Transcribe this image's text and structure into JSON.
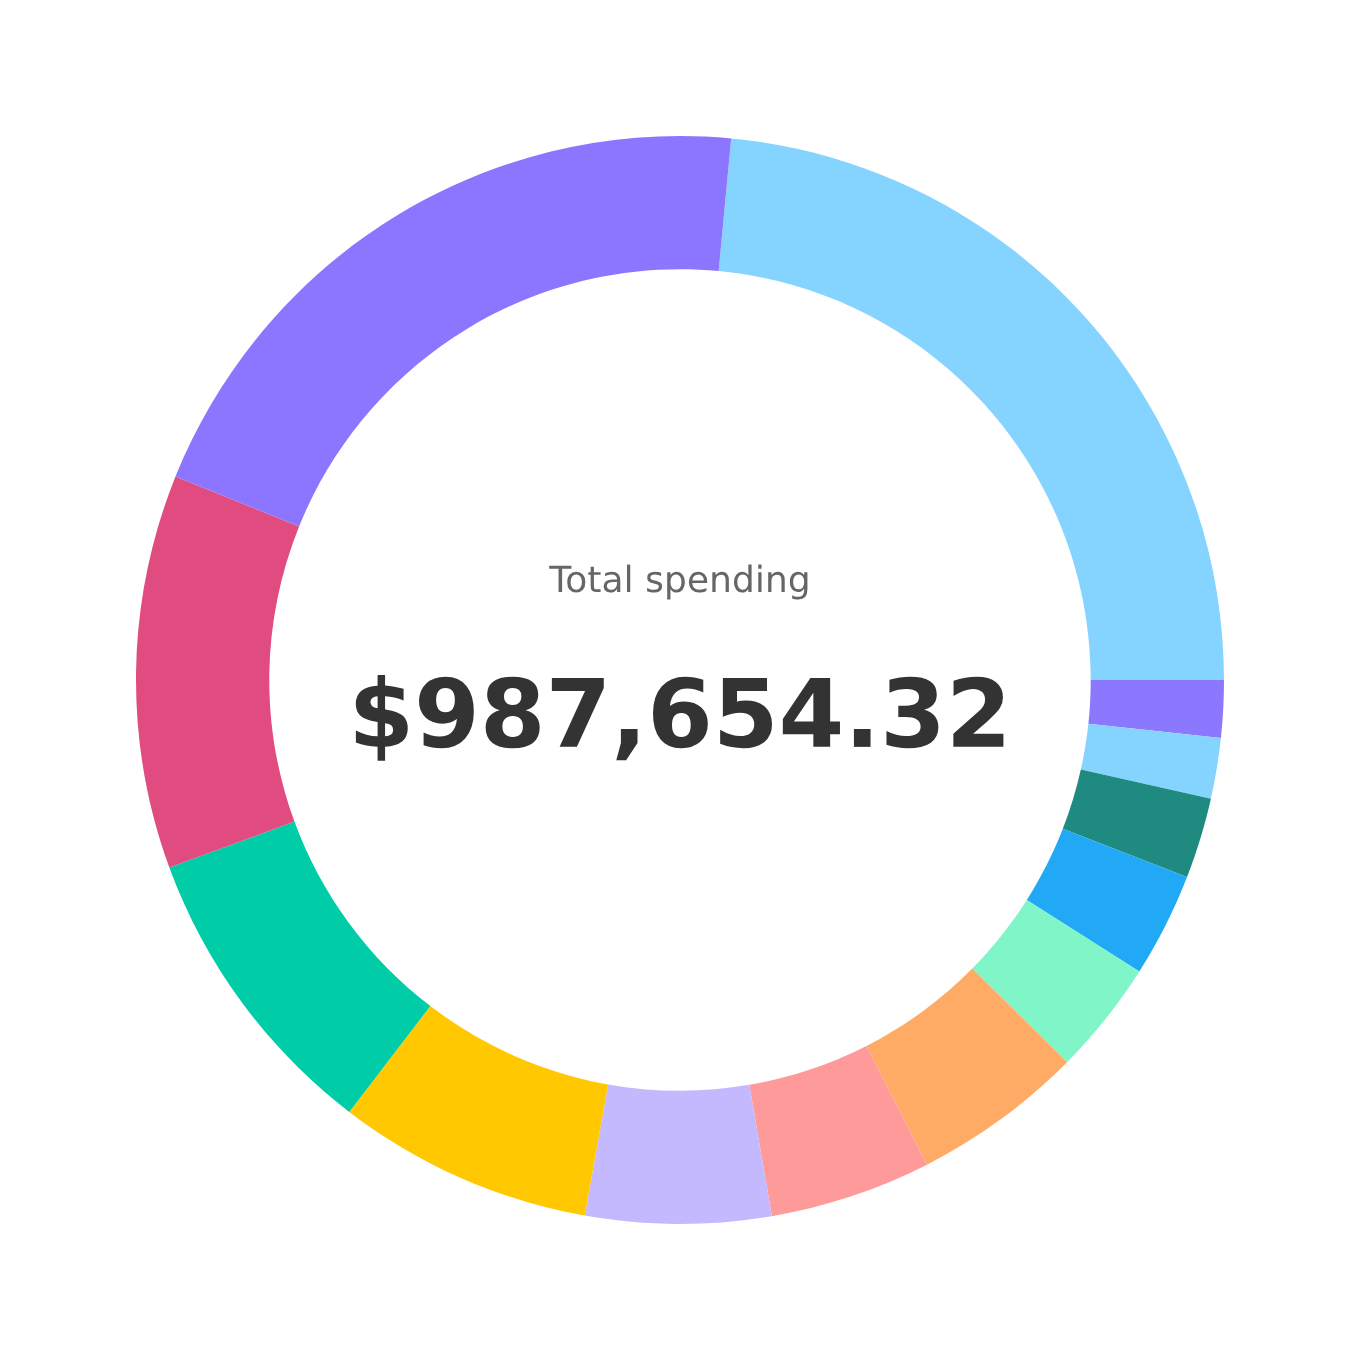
{
  "chart_data": {
    "type": "donut",
    "categories": [
      null,
      null,
      null,
      null,
      null,
      null,
      null,
      null,
      null,
      null,
      null,
      null,
      null
    ],
    "values": [
      23.5,
      1.7,
      1.8,
      2.4,
      3.1,
      3.4,
      5.1,
      4.8,
      5.5,
      7.6,
      9.0,
      11.7,
      20.4
    ],
    "colors": [
      "#85d3ff",
      "#8c78ff",
      "#85d3ff",
      "#1e8a80",
      "#21a9f5",
      "#7ff5c8",
      "#ffab66",
      "#ff9a9a",
      "#c4b8ff",
      "#ffc800",
      "#00cca8",
      "#e04c7f",
      "#8c75ff"
    ],
    "annotations": [
      "Total spending",
      "$987,654.32"
    ],
    "legend": false
  }
}
